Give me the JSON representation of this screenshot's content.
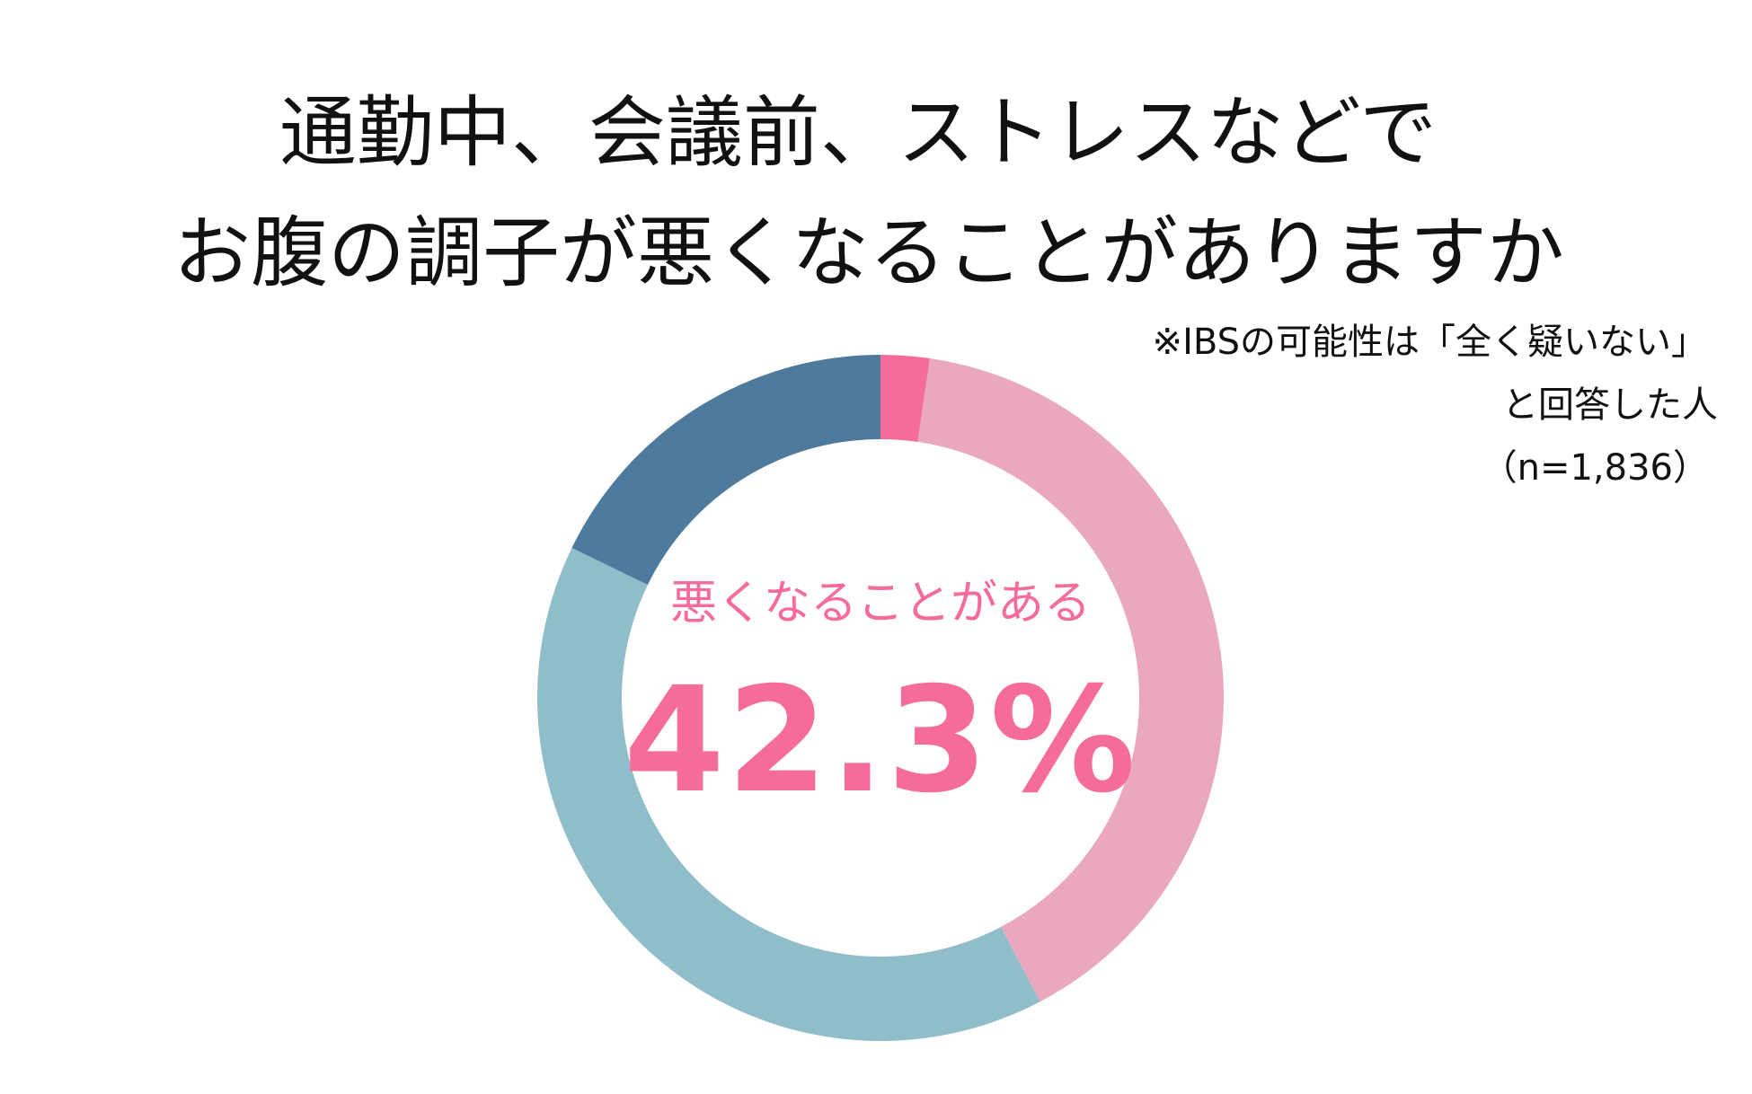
{
  "title": {
    "line1": "通勤中、会議前、ストレスなどで",
    "line2": "お腹の調子が悪くなることがありますか"
  },
  "note": {
    "line1": "※IBSの可能性は「全く疑いない」",
    "line2": "と回答した人",
    "line3": "（n=1,836）"
  },
  "center": {
    "caption": "悪くなることがある",
    "value": "42.3%"
  },
  "colors": {
    "accent": "#F66C98",
    "text": "#111111",
    "background": "#FFFFFF"
  },
  "chart_data": {
    "type": "pie",
    "style": "donut",
    "title": "通勤中、会議前、ストレスなどで お腹の調子が悪くなることがありますか",
    "center_label": "悪くなることがある",
    "center_value": "42.3%",
    "legend": "none",
    "slices": [
      {
        "value": 2.3,
        "color": "#F66C98"
      },
      {
        "value": 40.0,
        "color": "#EAA8BF"
      },
      {
        "value": 39.9,
        "color": "#90BDCA"
      },
      {
        "value": 17.8,
        "color": "#4E7B9D"
      }
    ]
  }
}
